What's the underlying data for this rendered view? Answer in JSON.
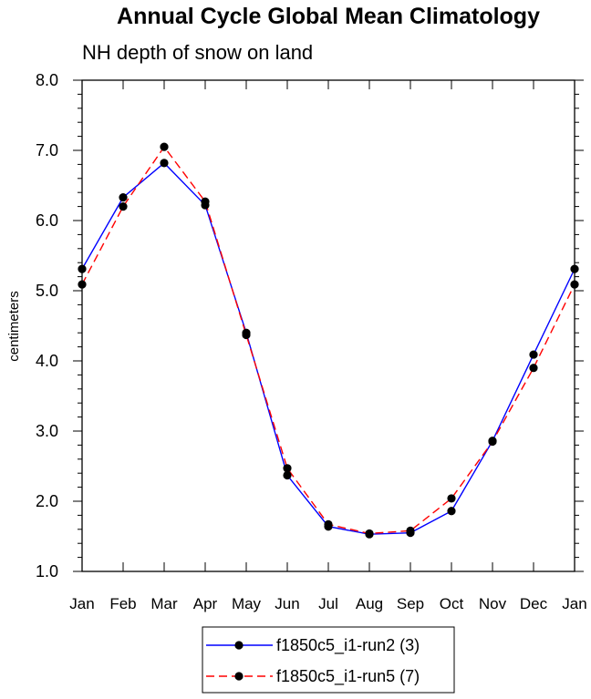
{
  "chart_data": {
    "type": "line",
    "title": "Annual Cycle Global Mean Climatology",
    "subtitle": "NH depth of snow on land",
    "xlabel": "",
    "ylabel": "centimeters",
    "categories": [
      "Jan",
      "Feb",
      "Mar",
      "Apr",
      "May",
      "Jun",
      "Jul",
      "Aug",
      "Sep",
      "Oct",
      "Nov",
      "Dec",
      "Jan"
    ],
    "ylim": [
      1.0,
      8.0
    ],
    "yticks": [
      "1.0",
      "2.0",
      "3.0",
      "4.0",
      "5.0",
      "6.0",
      "7.0",
      "8.0"
    ],
    "grid": false,
    "legend_placement": "bottom-center",
    "series": [
      {
        "name": "f1850c5_i1-run2 (3)",
        "color": "#0000ff",
        "dash": "solid",
        "values": [
          5.31,
          6.33,
          6.82,
          6.22,
          4.4,
          2.37,
          1.64,
          1.53,
          1.55,
          1.86,
          2.86,
          4.09,
          5.31
        ]
      },
      {
        "name": "f1850c5_i1-run5 (7)",
        "color": "#ff0000",
        "dash": "dashed",
        "values": [
          5.09,
          6.2,
          7.05,
          6.27,
          4.37,
          2.47,
          1.67,
          1.54,
          1.58,
          2.04,
          2.85,
          3.9,
          5.09
        ]
      }
    ]
  }
}
